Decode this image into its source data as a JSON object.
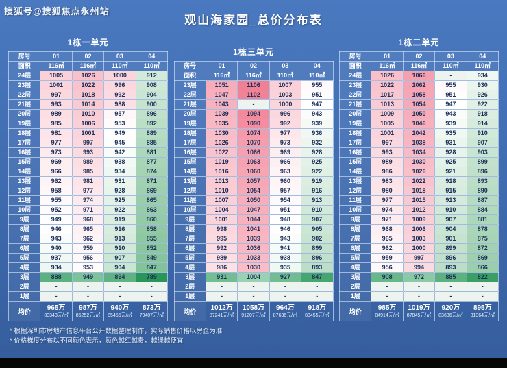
{
  "watermark": "搜狐号@搜狐焦点永州站",
  "title": "观山海家园_总价分布表",
  "table_labels": {
    "room": "房号",
    "area": "面积",
    "avg": "均价"
  },
  "notes": [
    "* 根据深圳市房地产信息平台公开数据整理制作，实际销售价格以房企为准",
    "* 价格梯度分布以不同颜色表示，颜色越红越贵，越绿越便宜"
  ],
  "colors": {
    "background": "#3e6aae",
    "heat_red_max": "#f28094",
    "heat_green_min": "#3ca05e",
    "special_floor_green": "#279656",
    "dash_cell": "#edf3ee",
    "cell_text": "#1c2f57"
  },
  "heatmap": {
    "min": 789,
    "max": 1106,
    "special_floor": "3层"
  },
  "chart_data": [
    {
      "type": "table",
      "title": "1栋一单元",
      "room_numbers": [
        "01",
        "02",
        "03",
        "04"
      ],
      "areas": [
        "116㎡",
        "116㎡",
        "110㎡",
        "110㎡"
      ],
      "floors": [
        "24层",
        "23层",
        "22层",
        "21层",
        "20层",
        "19层",
        "18层",
        "17层",
        "16层",
        "15层",
        "14层",
        "13层",
        "12层",
        "11层",
        "10层",
        "9层",
        "8层",
        "7层",
        "6层",
        "5层",
        "4层",
        "3层",
        "2层",
        "1层"
      ],
      "prices_wan": [
        [
          1005,
          1026,
          1000,
          912
        ],
        [
          1001,
          1022,
          996,
          908
        ],
        [
          997,
          1018,
          992,
          904
        ],
        [
          993,
          1014,
          988,
          900
        ],
        [
          989,
          1010,
          957,
          896
        ],
        [
          985,
          1006,
          953,
          892
        ],
        [
          981,
          1001,
          949,
          889
        ],
        [
          977,
          997,
          945,
          885
        ],
        [
          973,
          993,
          942,
          881
        ],
        [
          969,
          989,
          938,
          877
        ],
        [
          966,
          985,
          934,
          874
        ],
        [
          962,
          981,
          931,
          871
        ],
        [
          958,
          977,
          928,
          869
        ],
        [
          955,
          974,
          925,
          865
        ],
        [
          952,
          971,
          922,
          863
        ],
        [
          949,
          968,
          919,
          860
        ],
        [
          946,
          965,
          916,
          858
        ],
        [
          943,
          962,
          913,
          855
        ],
        [
          940,
          959,
          910,
          852
        ],
        [
          937,
          956,
          907,
          849
        ],
        [
          934,
          953,
          904,
          847
        ],
        [
          888,
          949,
          894,
          789
        ],
        [
          "-",
          "-",
          "-",
          "-"
        ],
        [
          "-",
          "-",
          "-",
          "-"
        ]
      ],
      "avg_price": [
        "965万",
        "987万",
        "940万",
        "873万"
      ],
      "avg_per_sqm": [
        "83343元/㎡",
        "85252元/㎡",
        "85455元/㎡",
        "79407元/㎡"
      ]
    },
    {
      "type": "table",
      "title": "1栋三单元",
      "room_numbers": [
        "01",
        "02",
        "03",
        "04"
      ],
      "areas": [
        "116㎡",
        "116㎡",
        "110㎡",
        "110㎡"
      ],
      "floors": [
        "23层",
        "22层",
        "21层",
        "20层",
        "19层",
        "18层",
        "17层",
        "16层",
        "15层",
        "14层",
        "13层",
        "12层",
        "11层",
        "10层",
        "9层",
        "8层",
        "7层",
        "6层",
        "5层",
        "4层",
        "3层",
        "2层",
        "1层"
      ],
      "prices_wan": [
        [
          1051,
          1106,
          1007,
          955
        ],
        [
          1047,
          1102,
          1003,
          951
        ],
        [
          1043,
          "-",
          1000,
          947
        ],
        [
          1039,
          1094,
          996,
          943
        ],
        [
          1035,
          1090,
          992,
          939
        ],
        [
          1030,
          1074,
          977,
          936
        ],
        [
          1026,
          1070,
          973,
          932
        ],
        [
          1022,
          1066,
          969,
          928
        ],
        [
          1019,
          1063,
          966,
          925
        ],
        [
          1016,
          1060,
          963,
          922
        ],
        [
          1013,
          1057,
          960,
          919
        ],
        [
          1010,
          1054,
          957,
          916
        ],
        [
          1007,
          1050,
          954,
          913
        ],
        [
          1004,
          1047,
          951,
          910
        ],
        [
          1001,
          1044,
          948,
          907
        ],
        [
          998,
          1041,
          946,
          905
        ],
        [
          995,
          1039,
          943,
          902
        ],
        [
          992,
          1036,
          941,
          899
        ],
        [
          989,
          1033,
          938,
          896
        ],
        [
          986,
          1030,
          935,
          893
        ],
        [
          931,
          1004,
          927,
          847
        ],
        [
          "-",
          "-",
          "-",
          "-"
        ],
        [
          "-",
          "-",
          "-",
          "-"
        ]
      ],
      "avg_price": [
        "1012万",
        "1058万",
        "964万",
        "918万"
      ],
      "avg_per_sqm": [
        "87241元/㎡",
        "91207元/㎡",
        "87636元/㎡",
        "83455元/㎡"
      ]
    },
    {
      "type": "table",
      "title": "1栋二单元",
      "room_numbers": [
        "01",
        "02",
        "03",
        "04"
      ],
      "areas": [
        "116㎡",
        "116㎡",
        "110㎡",
        "110㎡"
      ],
      "floors": [
        "24层",
        "23层",
        "22层",
        "21层",
        "20层",
        "19层",
        "18层",
        "17层",
        "16层",
        "15层",
        "14层",
        "13层",
        "12层",
        "11层",
        "10层",
        "9层",
        "8层",
        "7层",
        "6层",
        "5层",
        "4层",
        "3层",
        "2层",
        "1层"
      ],
      "prices_wan": [
        [
          1026,
          1066,
          "-",
          934
        ],
        [
          1022,
          1062,
          955,
          930
        ],
        [
          1017,
          1058,
          951,
          926
        ],
        [
          1013,
          1054,
          947,
          922
        ],
        [
          1009,
          1050,
          943,
          918
        ],
        [
          1005,
          1046,
          939,
          914
        ],
        [
          1001,
          1042,
          935,
          910
        ],
        [
          997,
          1038,
          931,
          907
        ],
        [
          993,
          1034,
          928,
          903
        ],
        [
          989,
          1030,
          925,
          899
        ],
        [
          986,
          1026,
          921,
          896
        ],
        [
          983,
          1022,
          918,
          893
        ],
        [
          980,
          1018,
          915,
          890
        ],
        [
          977,
          1015,
          913,
          887
        ],
        [
          974,
          1012,
          910,
          884
        ],
        [
          971,
          1009,
          907,
          881
        ],
        [
          968,
          1006,
          904,
          878
        ],
        [
          965,
          1003,
          901,
          875
        ],
        [
          962,
          1000,
          899,
          872
        ],
        [
          959,
          997,
          896,
          869
        ],
        [
          956,
          994,
          893,
          866
        ],
        [
          908,
          972,
          885,
          822
        ],
        [
          "-",
          "-",
          "-",
          "-"
        ],
        [
          "-",
          "-",
          "-",
          "-"
        ]
      ],
      "avg_price": [
        "985万",
        "1019万",
        "920万",
        "895万"
      ],
      "avg_per_sqm": [
        "84914元/㎡",
        "87845元/㎡",
        "83636元/㎡",
        "81364元/㎡"
      ]
    }
  ]
}
